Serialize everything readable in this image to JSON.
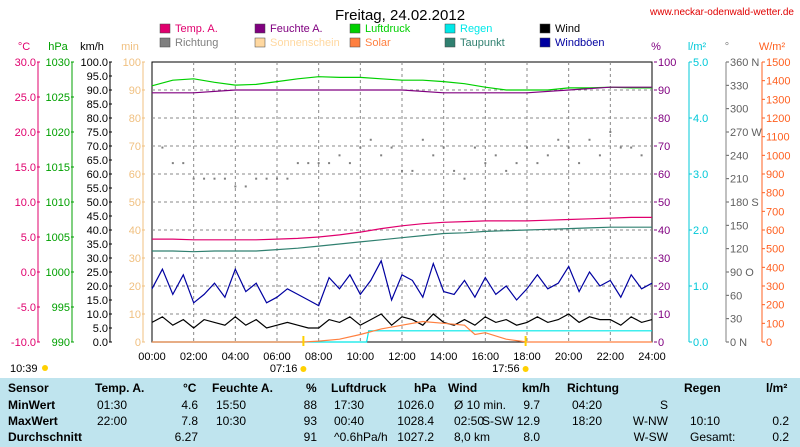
{
  "header": {
    "title": "Freitag, 24.02.2012",
    "source": "www.neckar-odenwald-wetter.de"
  },
  "legend": [
    {
      "label": "Temp. A.",
      "color": "#e0006e"
    },
    {
      "label": "Feuchte A.",
      "color": "#800080"
    },
    {
      "label": "Luftdruck",
      "color": "#00d000"
    },
    {
      "label": "Regen",
      "color": "#00e8e8"
    },
    {
      "label": "Wind",
      "color": "#000000"
    },
    {
      "label": "Richtung",
      "color": "#808080"
    },
    {
      "label": "Sonnenschein",
      "color": "#ffd8a0"
    },
    {
      "label": "Solar",
      "color": "#ff8040"
    },
    {
      "label": "Taupunkt",
      "color": "#308070"
    },
    {
      "label": "Windböen",
      "color": "#0000a0"
    }
  ],
  "axes_units": {
    "temp": "°C",
    "pressure": "hPa",
    "wind": "km/h",
    "sun": "min",
    "humidity": "%",
    "rain": "l/m²",
    "direction": "°",
    "solar": "W/m²"
  },
  "axes_ticks": {
    "temp": [
      "30.0",
      "25.0",
      "20.0",
      "15.0",
      "10.0",
      "5.0",
      "0.0",
      "-5.0",
      "-10.0"
    ],
    "pressure": [
      "1030",
      "1025",
      "1020",
      "1015",
      "1010",
      "1005",
      "1000",
      "995",
      "990"
    ],
    "wind": [
      "100.0",
      "95.0",
      "90.0",
      "85.0",
      "80.0",
      "75.0",
      "70.0",
      "65.0",
      "60.0",
      "55.0",
      "50.0",
      "45.0",
      "40.0",
      "35.0",
      "30.0",
      "25.0",
      "20.0",
      "15.0",
      "10.0",
      "5.0",
      "0.0"
    ],
    "sun": [
      "100",
      "90",
      "80",
      "70",
      "60",
      "50",
      "40",
      "30",
      "20",
      "10",
      "0"
    ],
    "humidity": [
      "100",
      "90",
      "80",
      "70",
      "60",
      "50",
      "40",
      "30",
      "20",
      "10",
      "0"
    ],
    "rain": [
      "5.0",
      "4.0",
      "3.0",
      "2.0",
      "1.0",
      "0.0"
    ],
    "direction": [
      "360 N",
      "330",
      "300",
      "270 W",
      "240",
      "210",
      "180 S",
      "150",
      "120",
      "90 O",
      "60",
      "30",
      "0 N"
    ],
    "solar": [
      "1500",
      "1400",
      "1300",
      "1200",
      "1100",
      "1000",
      "900",
      "800",
      "700",
      "600",
      "500",
      "400",
      "300",
      "200",
      "100",
      "0"
    ]
  },
  "sun_markers": {
    "sunrise": "07:16",
    "sunset": "17:56",
    "daylength": "10:39"
  },
  "chart_data": {
    "type": "line",
    "title": "Freitag, 24.02.2012",
    "x_ticks": [
      "00:00",
      "02:00",
      "04:00",
      "06:00",
      "08:00",
      "10:00",
      "12:00",
      "14:00",
      "16:00",
      "18:00",
      "20:00",
      "22:00",
      "24:00"
    ],
    "xlim": [
      0,
      24
    ],
    "grid": true,
    "series": [
      {
        "name": "Luftdruck",
        "axis": "pressure",
        "color": "#00d000",
        "x": [
          0,
          1,
          2,
          3,
          4,
          5,
          6,
          7,
          8,
          9,
          10,
          11,
          12,
          13,
          14,
          15,
          16,
          17,
          18,
          19,
          20,
          21,
          22,
          23,
          24
        ],
        "values": [
          1026.6,
          1027.4,
          1027.6,
          1027.1,
          1026.7,
          1026.8,
          1027.2,
          1027.6,
          1027.9,
          1027.8,
          1027.8,
          1027.6,
          1027.4,
          1027.4,
          1027.2,
          1026.9,
          1026.4,
          1026.0,
          1026.0,
          1026.0,
          1026.3,
          1026.3,
          1026.4,
          1026.3,
          1026.3
        ]
      },
      {
        "name": "Feuchte A.",
        "axis": "humidity",
        "color": "#800080",
        "x": [
          0,
          2,
          4,
          6,
          8,
          10,
          12,
          14,
          16,
          18,
          20,
          22,
          24
        ],
        "values": [
          89,
          89,
          90,
          90,
          90,
          90,
          90,
          89,
          89,
          89,
          90,
          91,
          91
        ]
      },
      {
        "name": "Temp. A.",
        "axis": "temp",
        "color": "#e0006e",
        "x": [
          0,
          1,
          2,
          3,
          4,
          5,
          6,
          7,
          8,
          9,
          10,
          11,
          12,
          13,
          14,
          15,
          16,
          17,
          18,
          19,
          20,
          21,
          22,
          23,
          24
        ],
        "values": [
          4.7,
          4.7,
          4.6,
          4.6,
          4.6,
          4.6,
          4.7,
          4.8,
          5.0,
          5.3,
          5.7,
          6.2,
          6.6,
          6.9,
          7.1,
          7.2,
          7.3,
          7.3,
          7.3,
          7.4,
          7.5,
          7.6,
          7.7,
          7.8,
          7.8
        ]
      },
      {
        "name": "Taupunkt",
        "axis": "temp",
        "color": "#308070",
        "x": [
          0,
          1,
          2,
          3,
          4,
          5,
          6,
          7,
          8,
          9,
          10,
          11,
          12,
          13,
          14,
          15,
          16,
          17,
          18,
          19,
          20,
          21,
          22,
          23,
          24
        ],
        "values": [
          3.0,
          3.0,
          2.9,
          3.0,
          3.0,
          3.0,
          3.2,
          3.4,
          3.7,
          4.0,
          4.3,
          4.6,
          4.9,
          5.2,
          5.5,
          5.6,
          5.8,
          5.9,
          6.0,
          6.1,
          6.2,
          6.3,
          6.4,
          6.4,
          6.4
        ]
      },
      {
        "name": "Windböen",
        "axis": "wind",
        "color": "#0000a0",
        "x": [
          0,
          0.5,
          1,
          1.5,
          2,
          2.5,
          3,
          3.5,
          4,
          4.5,
          5,
          5.5,
          6,
          6.5,
          7,
          7.5,
          8,
          8.5,
          9,
          9.5,
          10,
          10.5,
          11,
          11.5,
          12,
          12.5,
          13,
          13.5,
          14,
          14.5,
          15,
          15.5,
          16,
          16.5,
          17,
          17.5,
          18,
          18.5,
          19,
          19.5,
          20,
          20.5,
          21,
          21.5,
          22,
          22.5,
          23,
          23.5,
          24
        ],
        "values": [
          19,
          26,
          17,
          24,
          14,
          17,
          21,
          16,
          26,
          18,
          21,
          14,
          16,
          19,
          17,
          15,
          13,
          23,
          19,
          24,
          17,
          22,
          29,
          15,
          24,
          22,
          16,
          28,
          18,
          17,
          22,
          16,
          23,
          17,
          20,
          15,
          19,
          24,
          19,
          21,
          27,
          18,
          25,
          20,
          22,
          16,
          24,
          19,
          21
        ]
      },
      {
        "name": "Wind",
        "axis": "wind",
        "color": "#000000",
        "x": [
          0,
          0.5,
          1,
          1.5,
          2,
          2.5,
          3,
          3.5,
          4,
          4.5,
          5,
          5.5,
          6,
          6.5,
          7,
          7.5,
          8,
          8.5,
          9,
          9.5,
          10,
          10.5,
          11,
          11.5,
          12,
          12.5,
          13,
          13.5,
          14,
          14.5,
          15,
          15.5,
          16,
          16.5,
          17,
          17.5,
          18,
          18.5,
          19,
          19.5,
          20,
          20.5,
          21,
          21.5,
          22,
          22.5,
          23,
          23.5,
          24
        ],
        "values": [
          7,
          9,
          6,
          8,
          5,
          8,
          7,
          6,
          9,
          6,
          8,
          5,
          6,
          7,
          6,
          5,
          5,
          8,
          7,
          9,
          6,
          8,
          10,
          6,
          9,
          8,
          6,
          10,
          7,
          6,
          8,
          6,
          9,
          7,
          8,
          6,
          7,
          9,
          7,
          8,
          10,
          7,
          9,
          8,
          8,
          6,
          9,
          7,
          8
        ]
      },
      {
        "name": "Regen",
        "axis": "rain",
        "color": "#00e8e8",
        "x": [
          0,
          10.3,
          10.4,
          24
        ],
        "values": [
          0,
          0,
          0.2,
          0.2
        ]
      },
      {
        "name": "Solar",
        "axis": "solar",
        "color": "#ff8040",
        "x": [
          0,
          7.3,
          8,
          9,
          10,
          11,
          12,
          13,
          14,
          15,
          15.5,
          16,
          17,
          18,
          24
        ],
        "values": [
          0,
          0,
          5,
          15,
          40,
          70,
          90,
          110,
          100,
          90,
          40,
          50,
          15,
          0,
          0
        ]
      },
      {
        "name": "Richtung",
        "axis": "direction",
        "color": "#808080",
        "x": [
          0,
          0.5,
          1,
          1.5,
          2,
          2.5,
          3,
          3.5,
          4,
          4.5,
          5,
          5.5,
          6,
          6.5,
          7,
          7.5,
          8,
          8.5,
          9,
          9.5,
          10,
          10.5,
          11,
          11.5,
          12,
          12.5,
          13,
          13.5,
          14,
          14.5,
          15,
          15.5,
          16,
          16.5,
          17,
          17.5,
          18,
          18.5,
          19,
          19.5,
          20,
          20.5,
          21,
          21.5,
          22,
          22.5,
          23,
          23.5,
          24
        ],
        "values": [
          250,
          250,
          230,
          230,
          210,
          210,
          210,
          210,
          200,
          200,
          210,
          210,
          210,
          210,
          230,
          230,
          230,
          230,
          240,
          230,
          250,
          260,
          240,
          250,
          220,
          220,
          260,
          240,
          250,
          220,
          210,
          250,
          230,
          240,
          220,
          230,
          250,
          230,
          240,
          260,
          250,
          230,
          260,
          240,
          270,
          250,
          250,
          240,
          260
        ]
      }
    ]
  },
  "stats": {
    "headers": [
      {
        "label": "Sensor",
        "unit": ""
      },
      {
        "label": "Temp. A.",
        "unit": "°C"
      },
      {
        "label": "Feuchte A.",
        "unit": "%"
      },
      {
        "label": "Luftdruck",
        "unit": "hPa"
      },
      {
        "label": "Wind",
        "unit": "km/h"
      },
      {
        "label": "Richtung",
        "unit": ""
      },
      {
        "label": "Regen",
        "unit": "l/m²"
      }
    ],
    "rows": [
      {
        "label": "MinWert",
        "temp_time": "01:30",
        "temp": "4.6",
        "hum_time": "15:50",
        "hum": "88",
        "pres_time": "17:30",
        "pres": "1026.0",
        "wind_time": "Ø 10 min.",
        "wind": "9.7",
        "dir_time": "04:20",
        "dir": "S",
        "rain_time": "",
        "rain": ""
      },
      {
        "label": "MaxWert",
        "temp_time": "22:00",
        "temp": "7.8",
        "hum_time": "10:30",
        "hum": "93",
        "pres_time": "00:40",
        "pres": "1028.4",
        "wind_time": "02:50",
        "wind": "S-SW 12.9",
        "dir_time": "18:20",
        "dir": "W-NW",
        "rain_time": "10:10",
        "rain": "0.2"
      },
      {
        "label": "Durchschnitt",
        "temp_time": "",
        "temp": "6.27",
        "hum_time": "",
        "hum": "91",
        "pres_time": "^0.6hPa/h",
        "pres": "1027.2",
        "wind_time": "8,0 km",
        "wind": "8.0",
        "dir_time": "",
        "dir": "W-SW",
        "rain_time": "Gesamt:",
        "rain": "0.2"
      }
    ]
  }
}
